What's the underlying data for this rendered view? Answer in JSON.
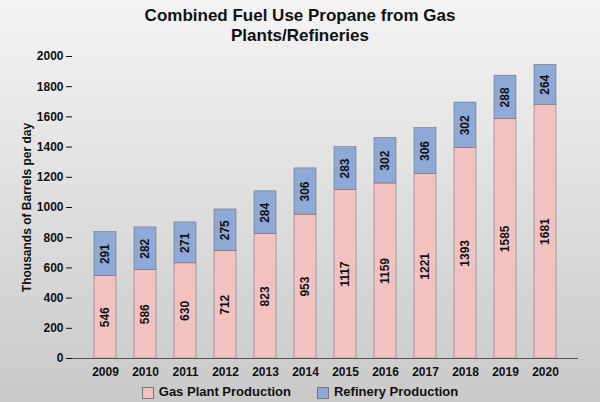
{
  "chart_data": {
    "type": "bar",
    "title": "Combined Fuel Use Propane from Gas Plants/Refineries",
    "y_label": "Thousands of Barrels per day",
    "categories": [
      "2009",
      "2010",
      "2011",
      "2012",
      "2013",
      "2014",
      "2015",
      "2016",
      "2017",
      "2018",
      "2019",
      "2020"
    ],
    "series": [
      {
        "name": "Gas Plant Production",
        "color": "#f2c2c0",
        "values": [
          546,
          586,
          630,
          712,
          823,
          953,
          1117,
          1159,
          1221,
          1393,
          1585,
          1681
        ]
      },
      {
        "name": "Refinery Production",
        "color": "#8fa9d6",
        "values": [
          291,
          282,
          271,
          275,
          284,
          306,
          283,
          302,
          306,
          302,
          288,
          264
        ]
      }
    ],
    "stacked": true,
    "data_labels": true,
    "grid": false,
    "legend": "bottom",
    "ylim": [
      0,
      2000
    ],
    "yticks": [
      0,
      200,
      400,
      600,
      800,
      1000,
      1200,
      1400,
      1600,
      1800,
      2000
    ]
  }
}
